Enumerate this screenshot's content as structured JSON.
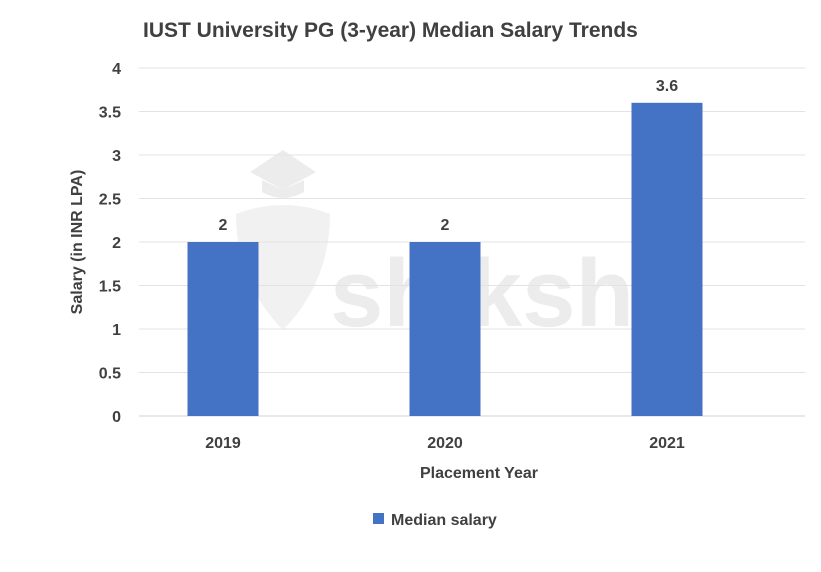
{
  "chart_data": {
    "type": "bar",
    "title": "IUST University PG (3-year) Median Salary Trends",
    "xlabel": "Placement Year",
    "ylabel": "Salary (in INR LPA)",
    "categories": [
      "2019",
      "2020",
      "2021"
    ],
    "series": [
      {
        "name": "Median salary",
        "values": [
          2,
          2,
          3.6
        ],
        "color": "#4472c4"
      }
    ],
    "ylim": [
      0,
      4
    ],
    "yticks": [
      0,
      0.5,
      1,
      1.5,
      2,
      2.5,
      3,
      3.5,
      4
    ],
    "ytick_labels": [
      "0",
      "0.5",
      "1",
      "1.5",
      "2",
      "2.5",
      "3",
      "3.5",
      "4"
    ],
    "grid": true,
    "legend": "bottom",
    "data_labels": [
      "2",
      "2",
      "3.6"
    ]
  },
  "watermark": {
    "text": "shiksha"
  }
}
